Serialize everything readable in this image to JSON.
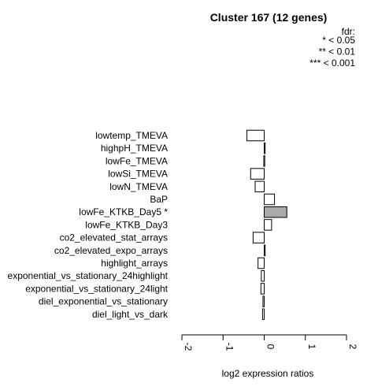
{
  "chart_data": {
    "type": "bar",
    "orientation": "horizontal",
    "title": "Cluster 167 (12 genes)",
    "xlabel": "log2 expression ratios",
    "xlim": [
      -2,
      2
    ],
    "xticks": [
      "-2",
      "-1",
      "0",
      "1",
      "2"
    ],
    "legend": {
      "title": "fdr:",
      "entries": [
        "* < 0.05",
        "** < 0.01",
        "*** < 0.001"
      ],
      "position": "top-right"
    },
    "categories": [
      "lowtemp_TMEVA",
      "highpH_TMEVA",
      "lowFe_TMEVA",
      "lowSi_TMEVA",
      "lowN_TMEVA",
      "BaP",
      "lowFe_KTKB_Day5 *",
      "lowFe_KTKB_Day3",
      "co2_elevated_stat_arrays",
      "co2_elevated_expo_arrays",
      "highlight_arrays",
      "exponential_vs_stationary_24highlight",
      "exponential_vs_stationary_24light",
      "diel_exponential_vs_stationary",
      "diel_light_vs_dark"
    ],
    "values": [
      -0.42,
      0.02,
      -0.01,
      -0.33,
      -0.22,
      0.25,
      0.55,
      0.18,
      -0.27,
      0.02,
      -0.15,
      -0.07,
      -0.08,
      -0.03,
      -0.04
    ],
    "highlighted": [
      false,
      false,
      false,
      false,
      false,
      false,
      true,
      false,
      false,
      false,
      false,
      false,
      false,
      false,
      false
    ],
    "colors": {
      "bar": "#ffffff",
      "highlight": "#aaaaaa",
      "stroke": "#000000"
    }
  }
}
